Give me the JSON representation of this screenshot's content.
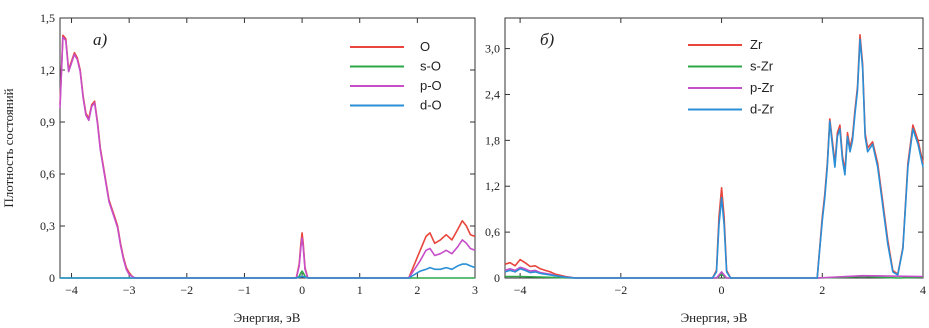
{
  "ylabel": "Плотность состояний",
  "chart_data": [
    {
      "type": "line",
      "panel_label": "а)",
      "xlabel": "Энергия, эВ",
      "ylabel": "Плотность состояний",
      "xlim": [
        -4.2,
        3.0
      ],
      "ylim": [
        0,
        1.5
      ],
      "xticks": [
        -4,
        -3,
        -2,
        -1,
        0,
        1,
        2,
        3
      ],
      "xtick_labels": [
        "−4",
        "−3",
        "−2",
        "−1",
        "0",
        "1",
        "2",
        "3"
      ],
      "yticks": [
        0,
        0.3,
        0.6,
        0.9,
        1.2,
        1.5
      ],
      "ytick_labels": [
        "0",
        "0,3",
        "0,6",
        "0,9",
        "1,2",
        "1,5"
      ],
      "legend_position": "top-right",
      "series": [
        {
          "name": "O",
          "color": "#e8453c",
          "x": [
            -4.2,
            -4.15,
            -4.1,
            -4.05,
            -4.0,
            -3.95,
            -3.9,
            -3.85,
            -3.8,
            -3.75,
            -3.7,
            -3.65,
            -3.6,
            -3.55,
            -3.5,
            -3.45,
            -3.4,
            -3.35,
            -3.3,
            -3.25,
            -3.2,
            -3.15,
            -3.1,
            -3.05,
            -3.0,
            -2.95,
            -2.9,
            -2.85,
            -2.8,
            -0.1,
            -0.05,
            -0.02,
            0.0,
            0.02,
            0.05,
            0.1,
            1.85,
            1.95,
            2.05,
            2.15,
            2.22,
            2.3,
            2.4,
            2.5,
            2.6,
            2.7,
            2.78,
            2.85,
            2.92,
            3.0
          ],
          "y": [
            1.0,
            1.4,
            1.38,
            1.2,
            1.25,
            1.3,
            1.27,
            1.2,
            1.05,
            0.95,
            0.92,
            1.0,
            1.02,
            0.9,
            0.75,
            0.65,
            0.55,
            0.45,
            0.4,
            0.35,
            0.3,
            0.2,
            0.12,
            0.06,
            0.03,
            0.01,
            0.0,
            0.0,
            0.0,
            0.0,
            0.08,
            0.2,
            0.26,
            0.2,
            0.06,
            0.0,
            0.0,
            0.08,
            0.16,
            0.24,
            0.26,
            0.2,
            0.22,
            0.25,
            0.22,
            0.28,
            0.33,
            0.3,
            0.25,
            0.24
          ]
        },
        {
          "name": "s-O",
          "color": "#2ca84a",
          "x": [
            -4.2,
            -4.0,
            -3.5,
            -3.0,
            -2.8,
            -0.1,
            -0.05,
            -0.02,
            0.0,
            0.02,
            0.05,
            0.1,
            1.85,
            2.2,
            2.8,
            3.0
          ],
          "y": [
            0.0,
            0.0,
            0.0,
            0.0,
            0.0,
            0.0,
            0.01,
            0.03,
            0.04,
            0.03,
            0.01,
            0.0,
            0.0,
            0.0,
            0.0,
            0.0
          ]
        },
        {
          "name": "p-O",
          "color": "#c64fc9",
          "x": [
            -4.2,
            -4.15,
            -4.1,
            -4.05,
            -4.0,
            -3.95,
            -3.9,
            -3.85,
            -3.8,
            -3.75,
            -3.7,
            -3.65,
            -3.6,
            -3.55,
            -3.5,
            -3.45,
            -3.4,
            -3.35,
            -3.3,
            -3.25,
            -3.2,
            -3.15,
            -3.1,
            -3.05,
            -3.0,
            -2.95,
            -2.9,
            -2.85,
            -2.8,
            -0.1,
            -0.05,
            -0.02,
            0.0,
            0.02,
            0.05,
            0.1,
            1.85,
            1.95,
            2.05,
            2.15,
            2.22,
            2.3,
            2.4,
            2.5,
            2.6,
            2.7,
            2.78,
            2.85,
            2.92,
            3.0
          ],
          "y": [
            0.98,
            1.39,
            1.37,
            1.19,
            1.24,
            1.29,
            1.26,
            1.19,
            1.04,
            0.94,
            0.91,
            0.99,
            1.01,
            0.89,
            0.74,
            0.64,
            0.54,
            0.44,
            0.39,
            0.34,
            0.29,
            0.19,
            0.11,
            0.05,
            0.02,
            0.01,
            0.0,
            0.0,
            0.0,
            0.0,
            0.07,
            0.18,
            0.23,
            0.18,
            0.05,
            0.0,
            0.0,
            0.05,
            0.1,
            0.16,
            0.17,
            0.13,
            0.14,
            0.16,
            0.14,
            0.18,
            0.22,
            0.2,
            0.17,
            0.16
          ]
        },
        {
          "name": "d-O",
          "color": "#2a8fd6",
          "x": [
            -4.2,
            -3.0,
            -0.1,
            0.0,
            0.1,
            1.85,
            1.95,
            2.05,
            2.15,
            2.22,
            2.3,
            2.4,
            2.5,
            2.6,
            2.7,
            2.78,
            2.85,
            2.92,
            3.0
          ],
          "y": [
            0.0,
            0.0,
            0.0,
            0.01,
            0.0,
            0.0,
            0.02,
            0.04,
            0.05,
            0.06,
            0.05,
            0.05,
            0.06,
            0.05,
            0.07,
            0.08,
            0.08,
            0.07,
            0.06
          ]
        }
      ]
    },
    {
      "type": "line",
      "panel_label": "б)",
      "xlabel": "Энергия, эВ",
      "xlim": [
        -4.3,
        4.0
      ],
      "ylim": [
        0,
        3.4
      ],
      "xticks": [
        -4,
        -2,
        0,
        2,
        4
      ],
      "xtick_labels": [
        "−4",
        "−2",
        "0",
        "2",
        "4"
      ],
      "yticks": [
        0,
        0.6,
        1.2,
        1.8,
        2.4,
        3.0
      ],
      "ytick_labels": [
        "0",
        "0,6",
        "1,2",
        "1,8",
        "2,4",
        "3,0"
      ],
      "legend_position": "top-right",
      "series": [
        {
          "name": "Zr",
          "color": "#e8453c",
          "x": [
            -4.3,
            -4.2,
            -4.1,
            -4.0,
            -3.9,
            -3.8,
            -3.7,
            -3.6,
            -3.5,
            -3.4,
            -3.3,
            -3.1,
            -2.9,
            -0.18,
            -0.1,
            -0.05,
            0.0,
            0.05,
            0.1,
            0.18,
            1.9,
            2.0,
            2.05,
            2.1,
            2.15,
            2.2,
            2.25,
            2.3,
            2.35,
            2.4,
            2.45,
            2.5,
            2.55,
            2.6,
            2.65,
            2.7,
            2.75,
            2.8,
            2.85,
            2.9,
            3.0,
            3.1,
            3.2,
            3.3,
            3.4,
            3.5,
            3.6,
            3.7,
            3.8,
            3.9,
            4.0
          ],
          "y": [
            0.18,
            0.2,
            0.16,
            0.24,
            0.2,
            0.15,
            0.16,
            0.12,
            0.1,
            0.08,
            0.05,
            0.02,
            0.0,
            0.0,
            0.1,
            0.8,
            1.18,
            0.8,
            0.1,
            0.0,
            0.0,
            0.8,
            1.1,
            1.5,
            2.08,
            1.8,
            1.5,
            1.9,
            2.0,
            1.6,
            1.4,
            1.9,
            1.7,
            1.85,
            2.2,
            2.5,
            3.18,
            2.8,
            1.9,
            1.7,
            1.78,
            1.5,
            1.0,
            0.5,
            0.1,
            0.05,
            0.4,
            1.5,
            2.0,
            1.8,
            1.5
          ]
        },
        {
          "name": "s-Zr",
          "color": "#2ca84a",
          "x": [
            -4.3,
            -4.0,
            -3.5,
            -3.0,
            -0.1,
            0.0,
            0.1,
            1.9,
            2.5,
            2.8,
            3.5,
            4.0
          ],
          "y": [
            0.02,
            0.02,
            0.01,
            0.0,
            0.0,
            0.05,
            0.0,
            0.0,
            0.01,
            0.02,
            0.0,
            0.01
          ]
        },
        {
          "name": "p-Zr",
          "color": "#c64fc9",
          "x": [
            -4.3,
            -4.2,
            -4.1,
            -4.0,
            -3.9,
            -3.8,
            -3.7,
            -3.6,
            -3.5,
            -3.4,
            -3.3,
            -3.1,
            -2.9,
            -0.1,
            0.0,
            0.1,
            1.9,
            2.8,
            4.0
          ],
          "y": [
            0.1,
            0.12,
            0.1,
            0.14,
            0.12,
            0.09,
            0.1,
            0.07,
            0.06,
            0.05,
            0.03,
            0.01,
            0.0,
            0.0,
            0.08,
            0.0,
            0.0,
            0.03,
            0.02
          ]
        },
        {
          "name": "d-Zr",
          "color": "#2a8fd6",
          "x": [
            -4.3,
            -4.2,
            -4.1,
            -4.0,
            -3.9,
            -3.8,
            -3.7,
            -3.6,
            -3.5,
            -3.4,
            -3.3,
            -3.1,
            -2.9,
            -0.18,
            -0.1,
            -0.05,
            0.0,
            0.05,
            0.1,
            0.18,
            1.9,
            2.0,
            2.05,
            2.1,
            2.15,
            2.2,
            2.25,
            2.3,
            2.35,
            2.4,
            2.45,
            2.5,
            2.55,
            2.6,
            2.65,
            2.7,
            2.75,
            2.8,
            2.85,
            2.9,
            3.0,
            3.1,
            3.2,
            3.3,
            3.4,
            3.5,
            3.6,
            3.7,
            3.8,
            3.9,
            4.0
          ],
          "y": [
            0.08,
            0.1,
            0.08,
            0.12,
            0.1,
            0.07,
            0.08,
            0.06,
            0.05,
            0.04,
            0.03,
            0.01,
            0.0,
            0.0,
            0.08,
            0.7,
            1.05,
            0.7,
            0.08,
            0.0,
            0.0,
            0.75,
            1.05,
            1.45,
            2.05,
            1.75,
            1.45,
            1.85,
            1.95,
            1.55,
            1.35,
            1.85,
            1.65,
            1.8,
            2.15,
            2.45,
            3.12,
            2.75,
            1.85,
            1.65,
            1.75,
            1.45,
            0.95,
            0.45,
            0.08,
            0.04,
            0.38,
            1.45,
            1.95,
            1.75,
            1.45
          ]
        }
      ]
    }
  ]
}
